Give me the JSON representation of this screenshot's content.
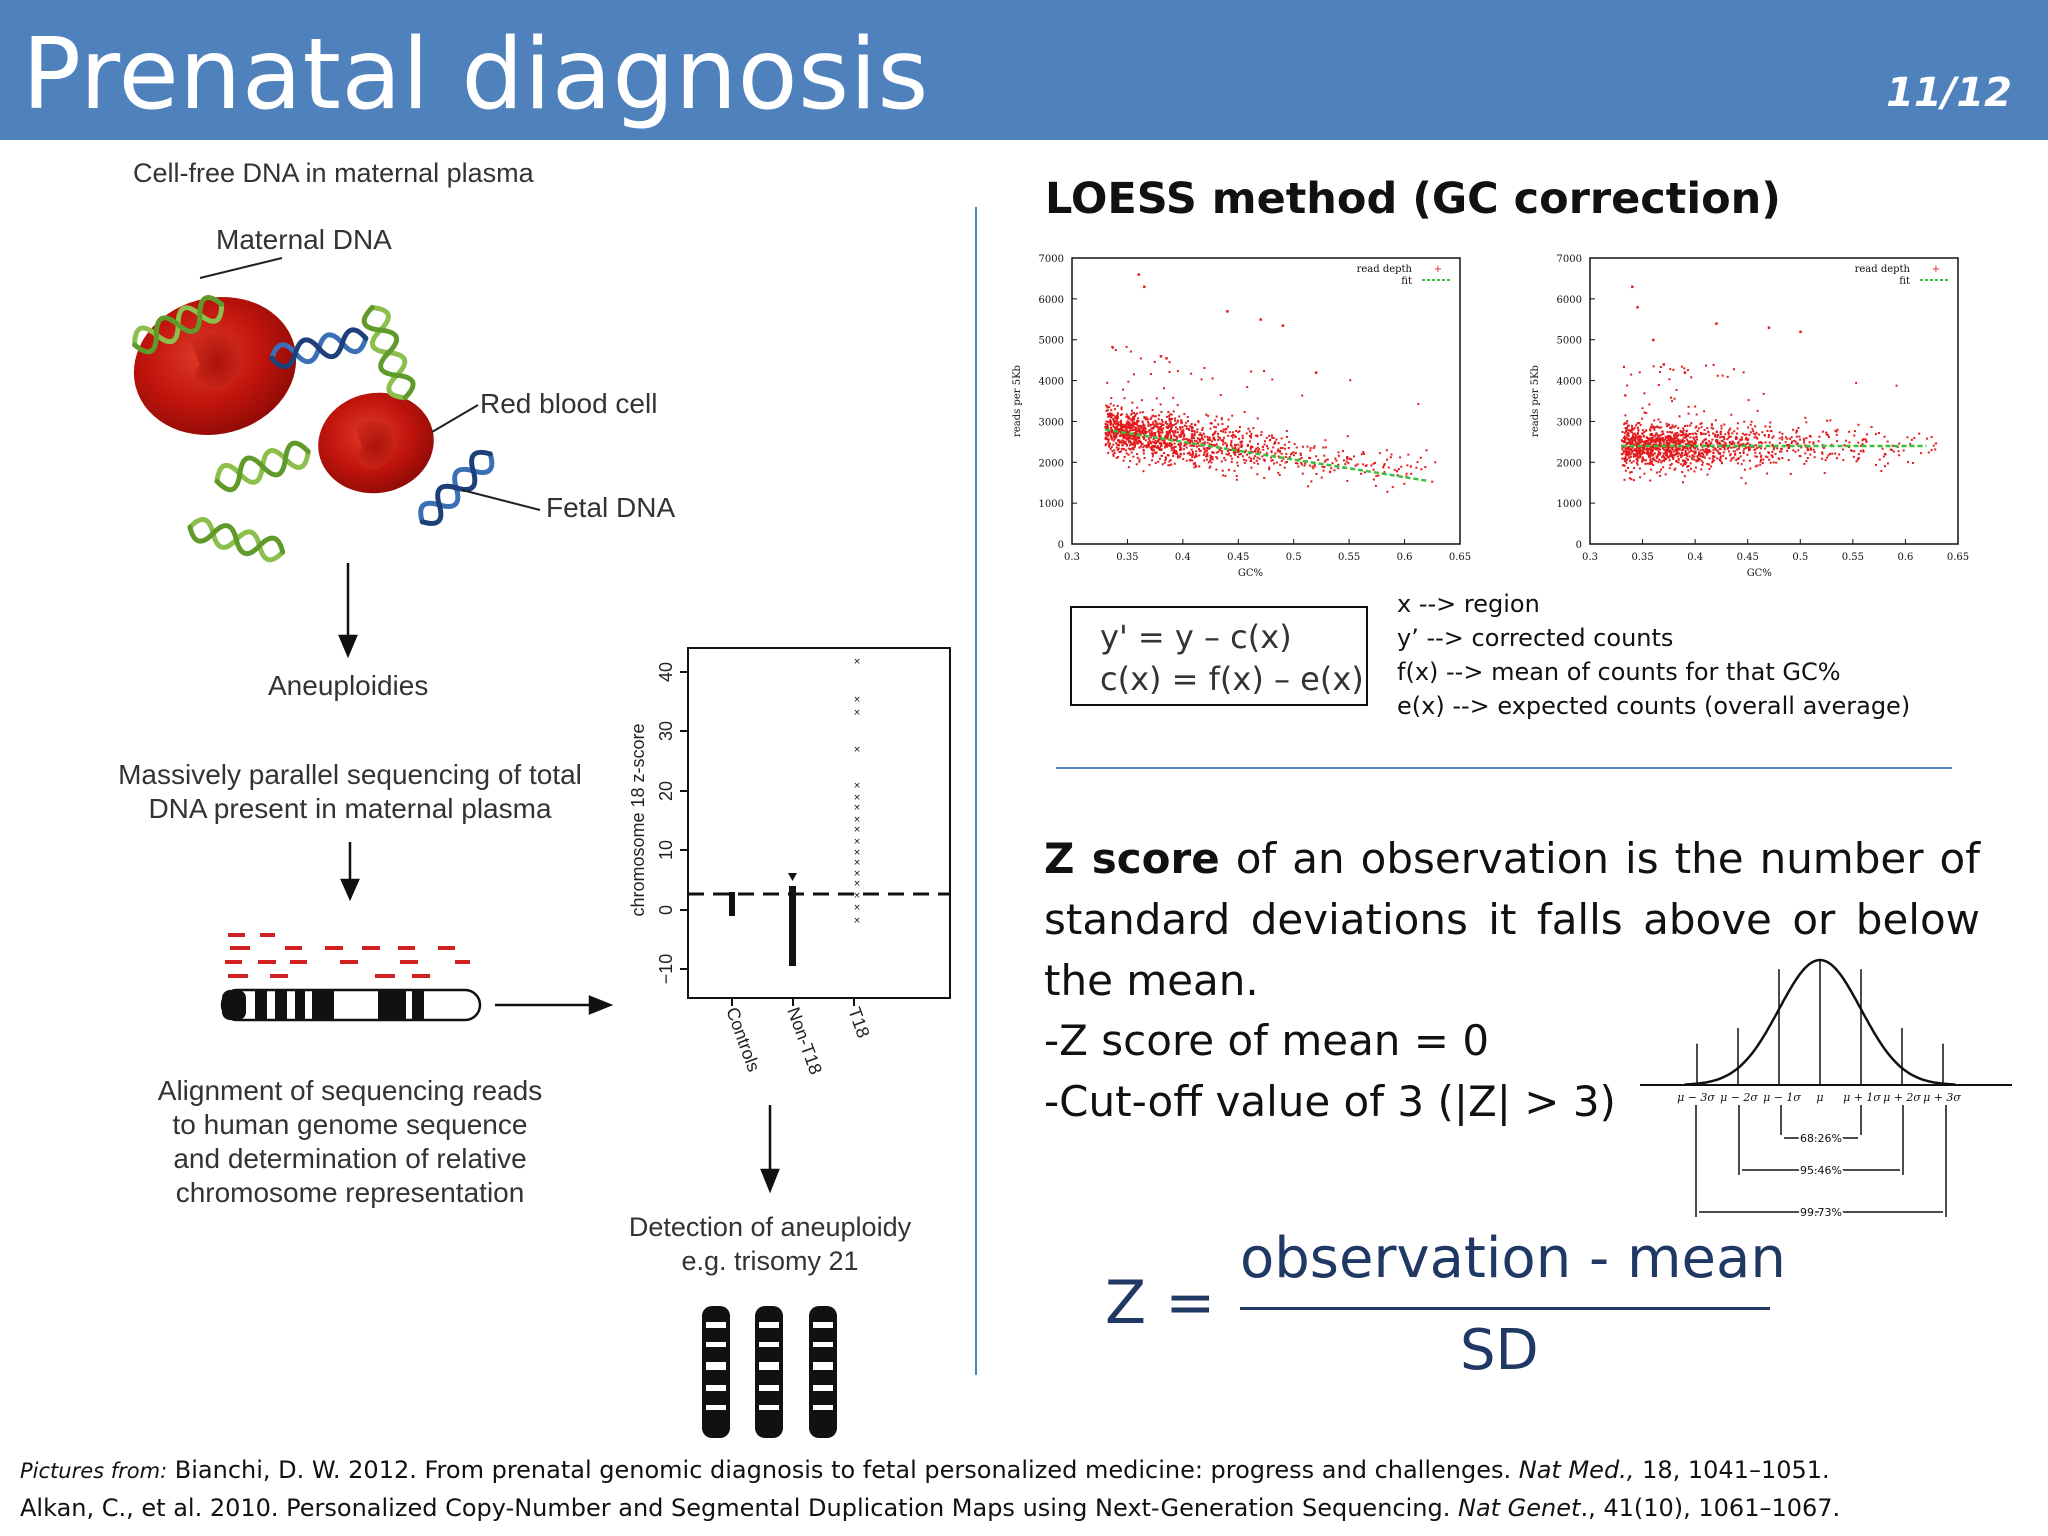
{
  "slide": {
    "title": "Prenatal diagnosis",
    "page": "11/12",
    "accent_color": "#4f81bd"
  },
  "left_figure": {
    "cfdna_title": "Cell-free DNA in maternal plasma",
    "maternal_dna": "Maternal DNA",
    "red_blood_cell": "Red blood cell",
    "fetal_dna": "Fetal DNA",
    "aneuploidies": "Aneuploidies",
    "sequencing_line1": "Massively parallel sequencing of total",
    "sequencing_line2": "DNA present in maternal plasma",
    "alignment_line1": "Alignment of sequencing reads",
    "alignment_line2": "to human genome sequence",
    "alignment_line3": "and determination of relative",
    "alignment_line4": "chromosome representation",
    "detection_line1": "Detection of aneuploidy",
    "detection_line2": "e.g. trisomy 21",
    "zplot": {
      "ylabel": "chromosome 18 z-score",
      "yticks": [
        "−10",
        "0",
        "10",
        "20",
        "30",
        "40"
      ],
      "categories": [
        "Controls",
        "Non-T18",
        "T18"
      ]
    }
  },
  "loess": {
    "title": "LOESS method (GC correction)",
    "plot_left": {
      "ylabel": "reads per 5Kb",
      "xlabel": "GC%",
      "legend_depth": "read depth",
      "legend_fit": "fit",
      "yticks": [
        "0",
        "1000",
        "2000",
        "3000",
        "4000",
        "5000",
        "6000",
        "7000"
      ],
      "xticks": [
        "0.3",
        "0.35",
        "0.4",
        "0.45",
        "0.5",
        "0.55",
        "0.6",
        "0.65"
      ]
    },
    "plot_right": {
      "ylabel": "reads per 5Kb",
      "xlabel": "GC%",
      "legend_depth": "read depth",
      "legend_fit": "fit",
      "yticks": [
        "0",
        "1000",
        "2000",
        "3000",
        "4000",
        "5000",
        "6000",
        "7000"
      ],
      "xticks": [
        "0.3",
        "0.35",
        "0.4",
        "0.45",
        "0.5",
        "0.55",
        "0.6",
        "0.65"
      ]
    },
    "formula_line1": "y' = y – c(x)",
    "formula_line2": "c(x) = f(x) – e(x)",
    "legend": [
      "x --> region",
      "y’ --> corrected counts",
      "f(x) --> mean of counts for that GC%",
      "e(x) --> expected counts (overall average)"
    ]
  },
  "zscore": {
    "bold_term": "Z score",
    "definition_rest": " of an observation is the number of standard deviations it falls above or below the mean.",
    "bullet1": "-Z score of mean = 0",
    "bullet2": "-Cut-off value of 3 (|Z| > 3)",
    "bell_labels": [
      "μ − 3σ",
      "μ − 2σ",
      "μ − 1σ",
      "μ",
      "μ + 1σ",
      "μ + 2σ",
      "μ + 3σ"
    ],
    "pct_68": "68.26%",
    "pct_95": "95.46%",
    "pct_99": "99.73%",
    "formula_lhs": "Z =",
    "formula_numerator": "observation - mean",
    "formula_denominator": "SD"
  },
  "footer": {
    "pictures_from": "Pictures from:",
    "ref1_text": " Bianchi, D. W. 2012. From prenatal genomic diagnosis to fetal personalized medicine: progress and challenges. ",
    "ref1_journal": "Nat Med.,",
    "ref1_tail": " 18, 1041–1051.",
    "ref2_text": "Alkan, C., et al. 2010. Personalized Copy-Number and Segmental Duplication Maps using Next-Generation Sequencing. ",
    "ref2_journal": "Nat Genet",
    "ref2_tail": "., 41(10), 1061–1067."
  }
}
